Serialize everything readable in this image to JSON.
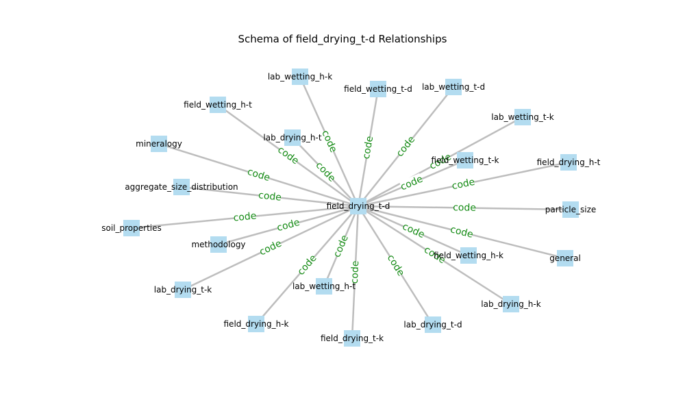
{
  "title": "Schema of field_drying_t-d Relationships",
  "center": {
    "id": "field_drying_t-d",
    "label": "field_drying_t-d"
  },
  "nodes": [
    {
      "id": "lab_wetting_h-k",
      "label": "lab_wetting_h-k"
    },
    {
      "id": "field_wetting_t-d",
      "label": "field_wetting_t-d"
    },
    {
      "id": "lab_wetting_t-d",
      "label": "lab_wetting_t-d"
    },
    {
      "id": "field_wetting_h-t",
      "label": "field_wetting_h-t"
    },
    {
      "id": "lab_wetting_t-k",
      "label": "lab_wetting_t-k"
    },
    {
      "id": "lab_drying_h-t",
      "label": "lab_drying_h-t"
    },
    {
      "id": "mineralogy",
      "label": "mineralogy"
    },
    {
      "id": "field_wetting_t-k",
      "label": "field_wetting_t-k"
    },
    {
      "id": "field_drying_h-t",
      "label": "field_drying_h-t"
    },
    {
      "id": "aggregate_size_distribution",
      "label": "aggregate_size_distribution"
    },
    {
      "id": "particle_size",
      "label": "particle_size"
    },
    {
      "id": "soil_properties",
      "label": "soil_properties"
    },
    {
      "id": "methodology",
      "label": "methodology"
    },
    {
      "id": "field_wetting_h-k",
      "label": "field_wetting_h-k"
    },
    {
      "id": "general",
      "label": "general"
    },
    {
      "id": "lab_drying_t-k",
      "label": "lab_drying_t-k"
    },
    {
      "id": "lab_wetting_h-t",
      "label": "lab_wetting_h-t"
    },
    {
      "id": "lab_drying_h-k",
      "label": "lab_drying_h-k"
    },
    {
      "id": "field_drying_h-k",
      "label": "field_drying_h-k"
    },
    {
      "id": "lab_drying_t-d",
      "label": "lab_drying_t-d"
    },
    {
      "id": "field_drying_t-k",
      "label": "field_drying_t-k"
    }
  ],
  "edge_label": "code",
  "colors": {
    "node_fill": "#b3dcf0",
    "edge_stroke": "#bdbdbd",
    "edge_label": "#138a13"
  }
}
